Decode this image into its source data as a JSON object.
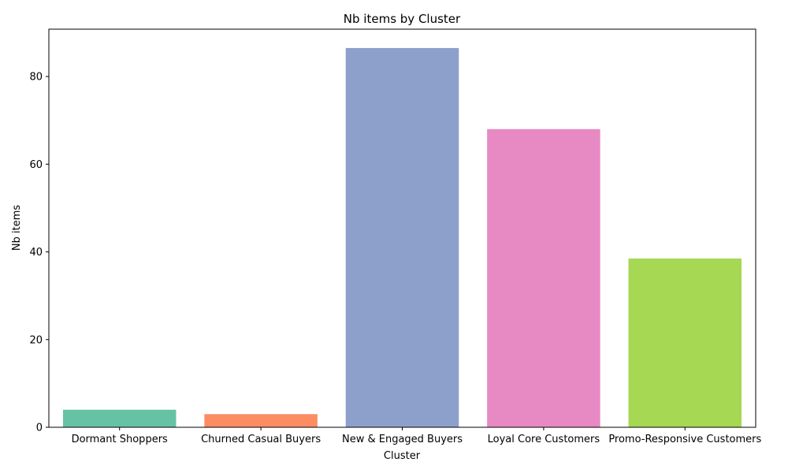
{
  "chart_data": {
    "type": "bar",
    "title": "Nb items by Cluster",
    "xlabel": "Cluster",
    "ylabel": "Nb items",
    "categories": [
      "Dormant Shoppers",
      "Churned Casual Buyers",
      "New & Engaged Buyers",
      "Loyal Core Customers",
      "Promo-Responsive Customers"
    ],
    "values": [
      4.0,
      3.0,
      86.5,
      68.0,
      38.5
    ],
    "colors": [
      "#66c2a5",
      "#fc8d62",
      "#8da0cb",
      "#e78ac3",
      "#a6d854"
    ],
    "ylim": [
      0,
      90.8
    ],
    "yticks": [
      0,
      20,
      40,
      60,
      80
    ],
    "grid": false,
    "legend": "none"
  }
}
